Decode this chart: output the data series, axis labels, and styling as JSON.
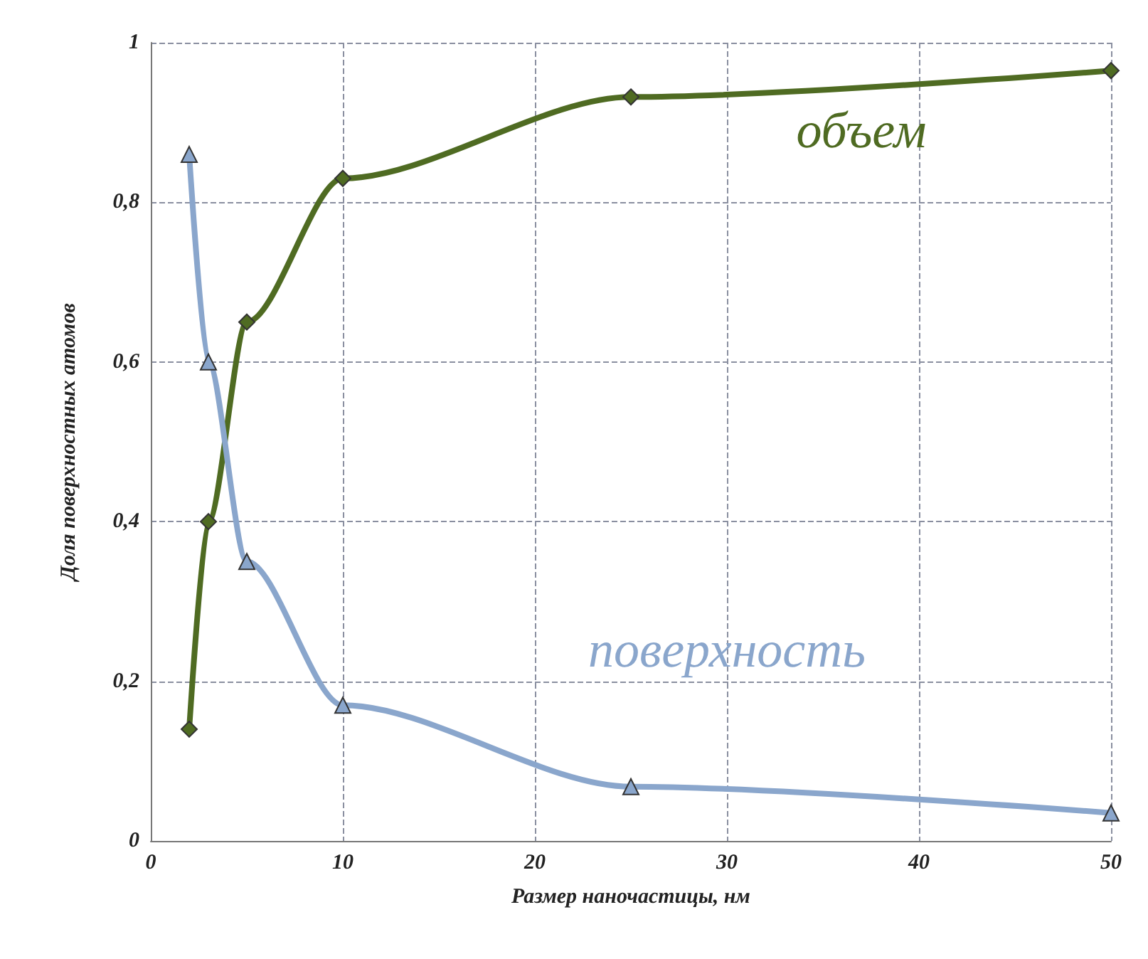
{
  "chart_data": {
    "type": "line",
    "xlabel": "Размер наночастицы, нм",
    "ylabel": "Доля поверхностных атомов",
    "x": [
      2,
      3,
      5,
      10,
      25,
      50
    ],
    "series": [
      {
        "name": "объем",
        "color": "#4f6b22",
        "marker": "diamond",
        "values": [
          0.14,
          0.4,
          0.65,
          0.83,
          0.932,
          0.965
        ]
      },
      {
        "name": "поверхность",
        "color": "#8aa6cc",
        "marker": "triangle",
        "values": [
          0.86,
          0.6,
          0.35,
          0.17,
          0.068,
          0.035
        ]
      }
    ],
    "xlim": [
      0,
      50
    ],
    "xticks": [
      0,
      10,
      20,
      30,
      40,
      50
    ],
    "ylim": [
      0,
      1
    ],
    "yticks": [
      0,
      {
        "value": 0.2,
        "label": "0,2"
      },
      {
        "value": 0.4,
        "label": "0,4"
      },
      {
        "value": 0.6,
        "label": "0,6"
      },
      {
        "value": 0.8,
        "label": "0,8"
      },
      1
    ],
    "grid": true,
    "line_style": "solid",
    "legend": false
  }
}
